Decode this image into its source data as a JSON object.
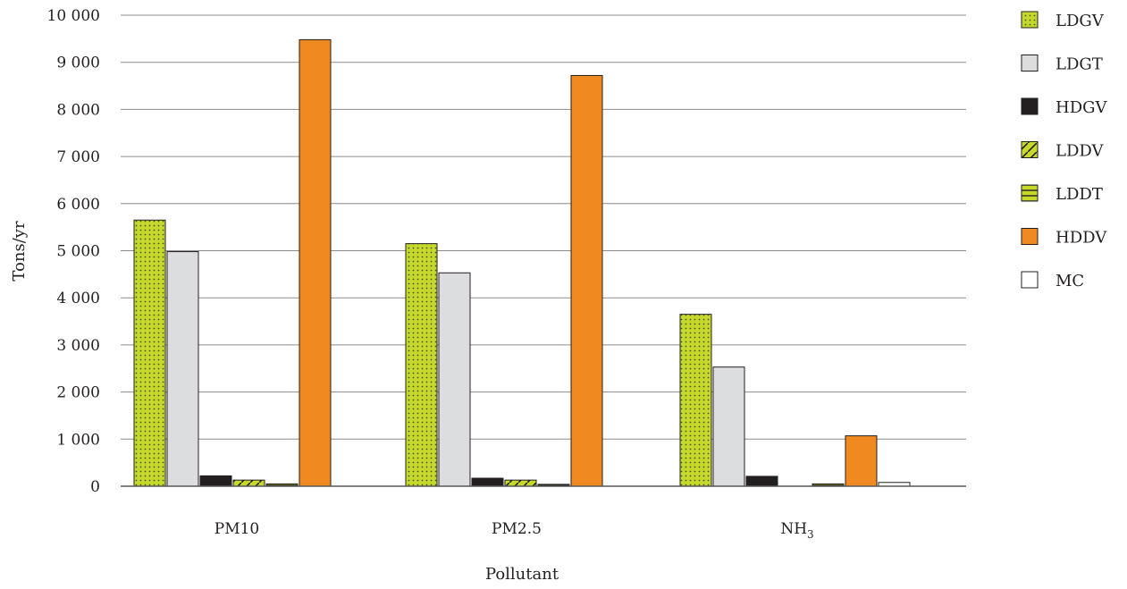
{
  "chart_data": {
    "type": "bar",
    "xlabel": "Pollutant",
    "ylabel": "Tons/yr",
    "categories": [
      "PM10",
      "PM2.5",
      "NH"
    ],
    "category_subscripts": [
      "",
      "",
      "3"
    ],
    "ylim": [
      0,
      10000
    ],
    "yticks": [
      0,
      1000,
      2000,
      3000,
      4000,
      5000,
      6000,
      7000,
      8000,
      9000,
      10000
    ],
    "ytick_labels": [
      "0",
      "1 000",
      "2 000",
      "3 000",
      "4 000",
      "5 000",
      "6 000",
      "7 000",
      "8 000",
      "9 000",
      "10 000"
    ],
    "grid": true,
    "legend_position": "right",
    "series": [
      {
        "name": "LDGV",
        "color": "#c5d92d",
        "pattern": "dots",
        "values": [
          5650,
          5150,
          3650
        ]
      },
      {
        "name": "LDGT",
        "color": "#dcdddf",
        "pattern": "none",
        "values": [
          4980,
          4530,
          2530
        ]
      },
      {
        "name": "HDGV",
        "color": "#231f20",
        "pattern": "none",
        "values": [
          220,
          170,
          210
        ]
      },
      {
        "name": "LDDV",
        "color": "#c5d92d",
        "pattern": "diagonal",
        "values": [
          130,
          130,
          0
        ]
      },
      {
        "name": "LDDT",
        "color": "#c5d92d",
        "pattern": "horizontal",
        "values": [
          50,
          40,
          50
        ]
      },
      {
        "name": "HDDV",
        "color": "#f0891f",
        "pattern": "none",
        "values": [
          9480,
          8720,
          1070
        ]
      },
      {
        "name": "MC",
        "color": "#ffffff",
        "pattern": "none",
        "values": [
          0,
          0,
          80
        ]
      }
    ]
  }
}
